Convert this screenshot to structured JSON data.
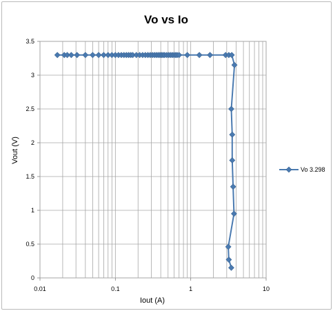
{
  "chart_data": {
    "type": "scatter",
    "title": "Vo vs Io",
    "xlabel": "Iout (A)",
    "ylabel": "Vout (V)",
    "xscale": "log",
    "xlim": [
      0.01,
      10
    ],
    "ylim": [
      0,
      3.5
    ],
    "x_ticks": [
      "0.01",
      "0.1",
      "1",
      "10"
    ],
    "y_ticks": [
      "0",
      "0.5",
      "1",
      "1.5",
      "2",
      "2.5",
      "3",
      "3.5"
    ],
    "grid": {
      "major_horizontal": true,
      "vertical_log_minor": true
    },
    "legend_position": "right",
    "series": [
      {
        "name": "Vo 3.298",
        "color": "#4a7ab0",
        "marker": "diamond",
        "line": true,
        "x": [
          0.017,
          0.021,
          0.023,
          0.026,
          0.031,
          0.04,
          0.05,
          0.06,
          0.07,
          0.08,
          0.09,
          0.1,
          0.11,
          0.12,
          0.13,
          0.14,
          0.15,
          0.16,
          0.17,
          0.19,
          0.21,
          0.23,
          0.25,
          0.27,
          0.29,
          0.31,
          0.33,
          0.35,
          0.37,
          0.39,
          0.41,
          0.43,
          0.45,
          0.48,
          0.51,
          0.54,
          0.57,
          0.6,
          0.63,
          0.66,
          0.7,
          0.9,
          1.3,
          1.8,
          2.9,
          3.2,
          3.5,
          3.8,
          3.45,
          3.55,
          3.55,
          3.65,
          3.75,
          3.15,
          3.2,
          3.45
        ],
        "y": [
          3.298,
          3.298,
          3.298,
          3.298,
          3.298,
          3.298,
          3.298,
          3.298,
          3.298,
          3.298,
          3.298,
          3.298,
          3.298,
          3.298,
          3.298,
          3.298,
          3.298,
          3.298,
          3.298,
          3.298,
          3.298,
          3.298,
          3.298,
          3.298,
          3.298,
          3.298,
          3.298,
          3.298,
          3.298,
          3.298,
          3.298,
          3.298,
          3.298,
          3.298,
          3.298,
          3.298,
          3.298,
          3.298,
          3.298,
          3.298,
          3.298,
          3.298,
          3.298,
          3.298,
          3.298,
          3.298,
          3.298,
          3.15,
          2.5,
          2.12,
          1.74,
          1.35,
          0.95,
          0.46,
          0.27,
          0.15
        ]
      }
    ]
  }
}
